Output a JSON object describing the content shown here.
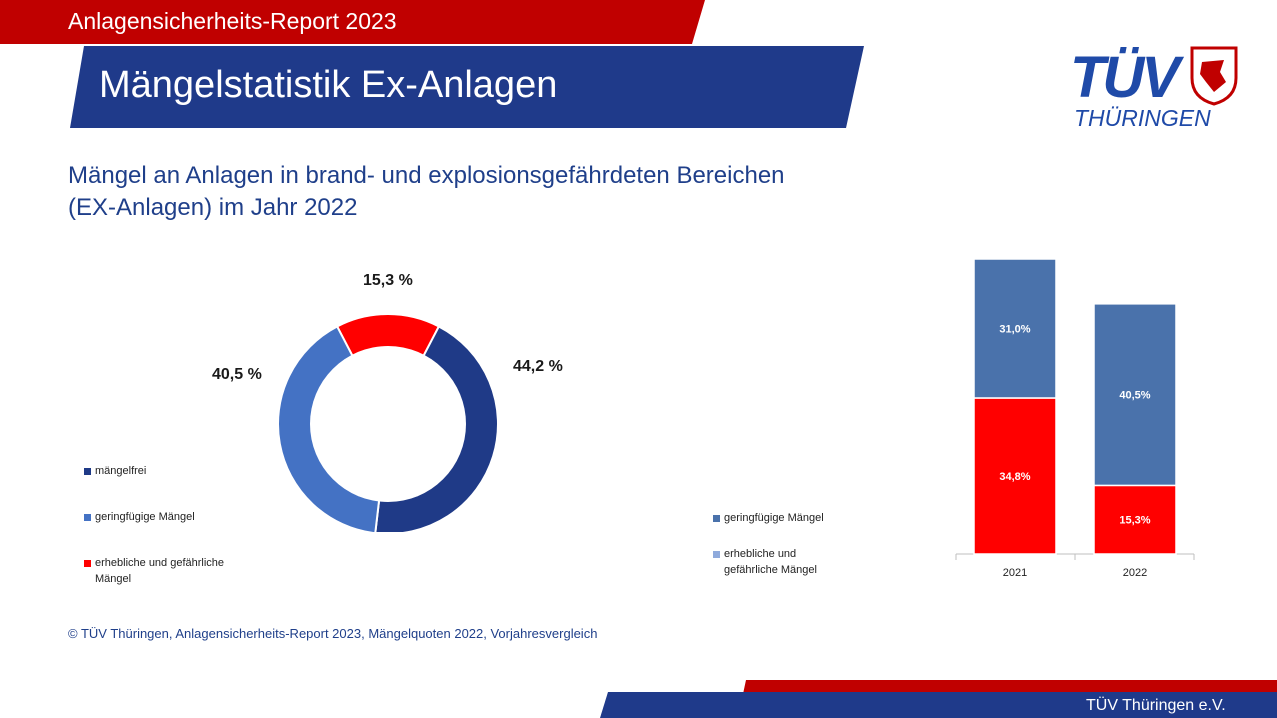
{
  "header": {
    "report_title": "Anlagensicherheits-Report 2023",
    "page_title": "Mängelstatistik Ex-Anlagen"
  },
  "logo": {
    "name": "TÜV",
    "subtitle": "THÜRINGEN"
  },
  "subtitle": {
    "line1": "Mängel an Anlagen in brand- und explosionsgefährdeten Bereichen",
    "line2": "(EX-Anlagen) im Jahr 2022"
  },
  "donut_labels": {
    "red": "15,3 %",
    "dark": "44,2 %",
    "light": "40,5 %"
  },
  "donut_legend": [
    "mängelfrei",
    "geringfügige Mängel",
    "erhebliche und gefährliche",
    "Mängel"
  ],
  "bar_legend": [
    "geringfügige Mängel",
    "erhebliche und",
    "gefährliche Mängel"
  ],
  "copyright": "© TÜV Thüringen, Anlagensicherheits-Report 2023, Mängelquoten 2022, Vorjahresvergleich",
  "footer": "TÜV Thüringen e.V.",
  "colors": {
    "brand_red": "#c00000",
    "brand_blue": "#1f3a8a",
    "dark_blue": "#1f3a87",
    "mid_blue": "#4472c4",
    "bar_blue": "#4a72ab",
    "red": "#ff0000"
  },
  "chart_data": [
    {
      "type": "pie",
      "title": "Mängel an Anlagen in brand- und explosionsgefährdeten Bereichen (EX-Anlagen) im Jahr 2022",
      "categories": [
        "mängelfrei",
        "geringfügige Mängel",
        "erhebliche und gefährliche Mängel"
      ],
      "values": [
        44.2,
        40.5,
        15.3
      ],
      "colors": [
        "#1f3a87",
        "#4472c4",
        "#ff0000"
      ],
      "donut": true
    },
    {
      "type": "bar",
      "stacked": true,
      "categories": [
        "2021",
        "2022"
      ],
      "series": [
        {
          "name": "erhebliche und gefährliche Mängel",
          "values": [
            34.8,
            15.3
          ],
          "labels": [
            "34,8%",
            "15,3%"
          ],
          "color": "#ff0000"
        },
        {
          "name": "geringfügige Mängel",
          "values": [
            31.0,
            40.5
          ],
          "labels": [
            "31,0%",
            "40,5%"
          ],
          "color": "#4a72ab"
        }
      ],
      "ylim": [
        0,
        65.8
      ]
    }
  ]
}
